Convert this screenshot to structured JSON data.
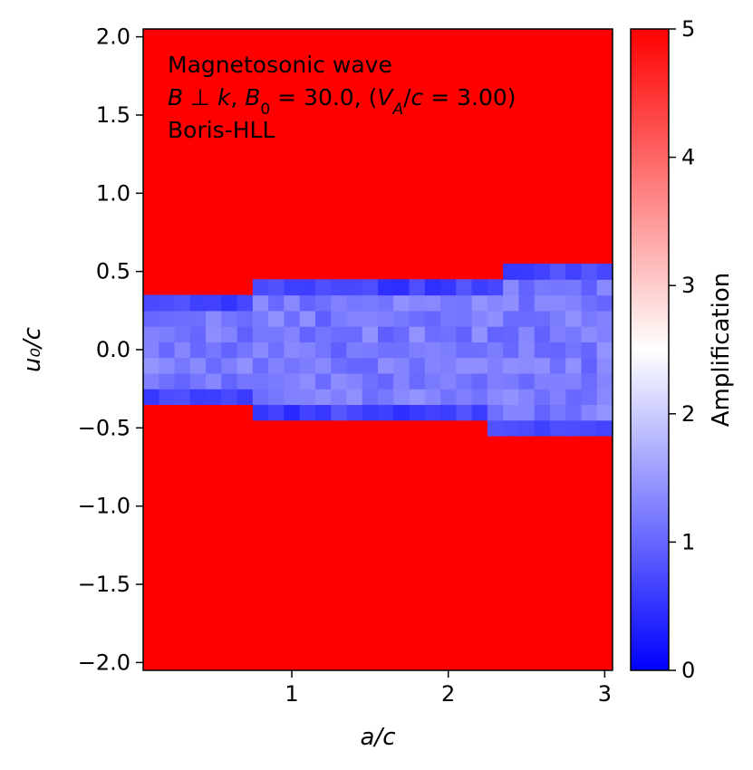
{
  "chart_data": {
    "type": "heatmap",
    "annotation": {
      "line1": "Magnetosonic wave",
      "line2_parts": [
        {
          "t": "B",
          "i": true
        },
        {
          "t": " ⊥ ",
          "i": false
        },
        {
          "t": "k",
          "i": true
        },
        {
          "t": ", ",
          "i": false
        },
        {
          "t": "B",
          "i": true
        },
        {
          "t": "0",
          "i": false,
          "sub": true
        },
        {
          "t": " = 30.0, (",
          "i": false
        },
        {
          "t": "V",
          "i": true
        },
        {
          "t": "A",
          "i": true,
          "sub": true
        },
        {
          "t": "/",
          "i": false
        },
        {
          "t": "c",
          "i": true
        },
        {
          "t": " = 3.00)",
          "i": false
        }
      ],
      "line3": "Boris-HLL"
    },
    "xlabel": "a/c",
    "ylabel": "u₀/c",
    "colorbar_label": "Amplification",
    "xlim": [
      0.05,
      3.05
    ],
    "ylim": [
      -2.05,
      2.05
    ],
    "x_ticks": [
      {
        "v": 1,
        "label": "1"
      },
      {
        "v": 2,
        "label": "2"
      },
      {
        "v": 3,
        "label": "3"
      }
    ],
    "y_ticks": [
      {
        "v": 2.0,
        "label": "2.0"
      },
      {
        "v": 1.5,
        "label": "1.5"
      },
      {
        "v": 1.0,
        "label": "1.0"
      },
      {
        "v": 0.5,
        "label": "0.5"
      },
      {
        "v": 0.0,
        "label": "0.0"
      },
      {
        "v": -0.5,
        "label": "−0.5"
      },
      {
        "v": -1.0,
        "label": "−1.0"
      },
      {
        "v": -1.5,
        "label": "−1.5"
      },
      {
        "v": -2.0,
        "label": "−2.0"
      }
    ],
    "colorbar": {
      "vmin": 0,
      "vmax": 5,
      "colormap": "bwr",
      "ticks": [
        {
          "v": 0,
          "label": "0"
        },
        {
          "v": 1,
          "label": "1"
        },
        {
          "v": 2,
          "label": "2"
        },
        {
          "v": 3,
          "label": "3"
        },
        {
          "v": 4,
          "label": "4"
        },
        {
          "v": 5,
          "label": "5"
        }
      ]
    },
    "background_value": 5,
    "grid": {
      "x_start": 0.05,
      "dx": 0.1,
      "nx": 30,
      "y_start": -2.05,
      "dy": 0.1,
      "ny": 41
    },
    "stable_bands": [
      {
        "x_from": 0.05,
        "x_to": 0.75,
        "y_from": -0.35,
        "y_to": 0.35
      },
      {
        "x_from": 0.75,
        "x_to": 2.25,
        "y_from": -0.45,
        "y_to": 0.45
      },
      {
        "x_from": 2.25,
        "x_to": 2.35,
        "y_from": -0.55,
        "y_to": 0.45
      },
      {
        "x_from": 2.35,
        "x_to": 3.05,
        "y_from": -0.55,
        "y_to": 0.55
      }
    ],
    "stable_value_range": [
      0.4,
      1.9
    ],
    "colors": {
      "low": "#0000ff",
      "mid": "#ffffff",
      "high": "#ff0000"
    }
  }
}
